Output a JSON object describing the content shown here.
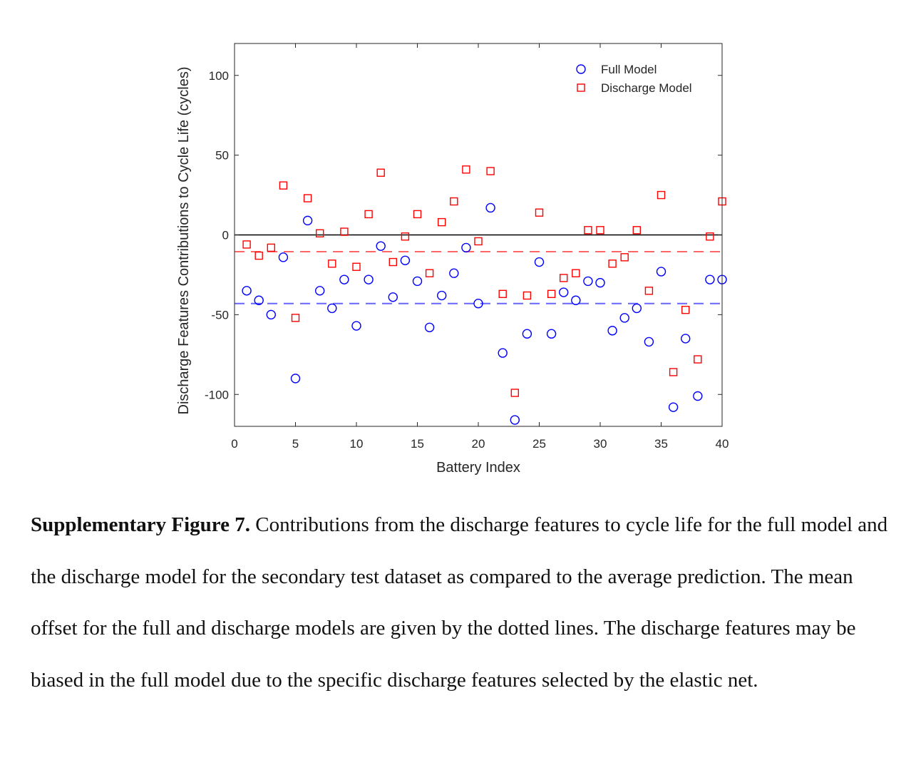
{
  "chart_data": {
    "type": "scatter",
    "xlabel": "Battery Index",
    "ylabel": "Discharge Features Contributions to Cycle Life (cycles)",
    "xlim": [
      0,
      40
    ],
    "ylim": [
      -120,
      120
    ],
    "xticks": [
      0,
      5,
      10,
      15,
      20,
      25,
      30,
      35,
      40
    ],
    "yticks": [
      -100,
      -50,
      0,
      50,
      100
    ],
    "grid": false,
    "legend_position": "top-right",
    "series": [
      {
        "name": "Full Model",
        "marker": "circle",
        "color": "#0000ff",
        "x": [
          1,
          2,
          3,
          4,
          5,
          6,
          7,
          8,
          9,
          10,
          11,
          12,
          13,
          14,
          15,
          16,
          17,
          18,
          19,
          20,
          21,
          22,
          23,
          24,
          25,
          26,
          27,
          28,
          29,
          30,
          31,
          32,
          33,
          34,
          35,
          36,
          37,
          38,
          39,
          40
        ],
        "y": [
          -35,
          -41,
          -50,
          -14,
          -90,
          9,
          -35,
          -46,
          -28,
          -57,
          -28,
          -7,
          -39,
          -16,
          -29,
          -58,
          -38,
          -24,
          -8,
          -43,
          17,
          -74,
          -116,
          -62,
          -17,
          -62,
          -36,
          -41,
          -29,
          -30,
          -60,
          -52,
          -46,
          -67,
          -23,
          -108,
          -65,
          -101,
          -28,
          -28
        ]
      },
      {
        "name": "Discharge Model",
        "marker": "square",
        "color": "#ff0000",
        "x": [
          1,
          2,
          3,
          4,
          5,
          6,
          7,
          8,
          9,
          10,
          11,
          12,
          13,
          14,
          15,
          16,
          17,
          18,
          19,
          20,
          21,
          22,
          23,
          24,
          25,
          26,
          27,
          28,
          29,
          30,
          31,
          32,
          33,
          34,
          35,
          36,
          37,
          38,
          39,
          40
        ],
        "y": [
          -6,
          -13,
          -8,
          31,
          -52,
          23,
          1,
          -18,
          2,
          -20,
          13,
          39,
          -17,
          -1,
          13,
          -24,
          8,
          21,
          41,
          -4,
          40,
          -37,
          -99,
          -38,
          14,
          -37,
          -27,
          -24,
          3,
          3,
          -18,
          -14,
          3,
          -35,
          25,
          -86,
          -47,
          -78,
          -1,
          21
        ]
      }
    ],
    "reference_lines": [
      {
        "y": 0,
        "style": "solid",
        "color": "#000000"
      },
      {
        "y": -10.5,
        "style": "dashed",
        "color": "#ff6666"
      },
      {
        "y": -43,
        "style": "dashed",
        "color": "#6666ff"
      }
    ]
  },
  "caption": {
    "label": "Supplementary Figure 7.",
    "text": " Contributions from the discharge features to cycle life for the full model and the discharge model for the secondary test dataset as compared to the average prediction. The mean offset for the full and discharge models are given by the dotted lines. The discharge features may be biased in the full model due to the specific discharge features selected by the elastic net."
  }
}
